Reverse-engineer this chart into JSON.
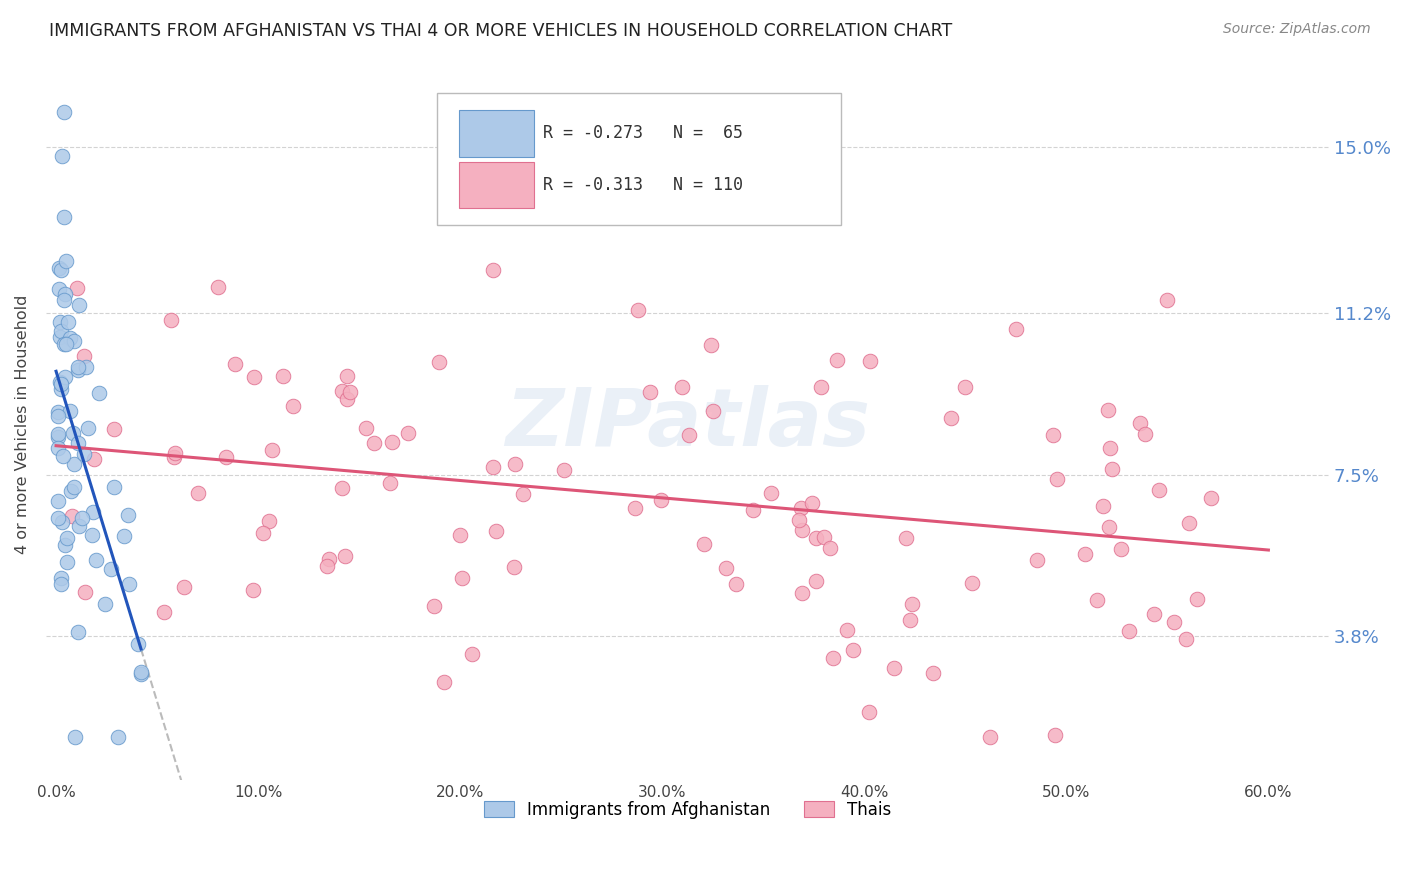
{
  "title": "IMMIGRANTS FROM AFGHANISTAN VS THAI 4 OR MORE VEHICLES IN HOUSEHOLD CORRELATION CHART",
  "source": "Source: ZipAtlas.com",
  "ylabel": "4 or more Vehicles in Household",
  "x_tick_labels": [
    "0.0%",
    "10.0%",
    "20.0%",
    "30.0%",
    "40.0%",
    "50.0%",
    "60.0%"
  ],
  "x_tick_values": [
    0.0,
    0.1,
    0.2,
    0.3,
    0.4,
    0.5,
    0.6
  ],
  "y_tick_labels": [
    "3.8%",
    "7.5%",
    "11.2%",
    "15.0%"
  ],
  "y_tick_values": [
    0.038,
    0.075,
    0.112,
    0.15
  ],
  "ylim": [
    0.005,
    0.168
  ],
  "xlim": [
    -0.005,
    0.63
  ],
  "r_afghanistan": -0.273,
  "n_afghanistan": 65,
  "r_thai": -0.313,
  "n_thai": 110,
  "watermark": "ZIPatlas",
  "background_color": "#ffffff",
  "grid_color": "#c8c8c8",
  "right_tick_color": "#5588cc",
  "afghanistan_dot_color": "#adc9e8",
  "afghan_dot_edge_color": "#6699cc",
  "thai_dot_color": "#f5b0c0",
  "thai_dot_edge_color": "#e07090",
  "afghanistan_line_color": "#2255bb",
  "thai_line_color": "#dd5577",
  "dashed_line_color": "#bbbbbb",
  "legend_box_edge_color": "#bbbbbb",
  "legend_text_color": "#333333",
  "title_color": "#222222",
  "source_color": "#888888",
  "ylabel_color": "#444444",
  "xtick_color": "#444444",
  "afghan_legend_entry": "Immigrants from Afghanistan",
  "thai_legend_entry": "Thais"
}
